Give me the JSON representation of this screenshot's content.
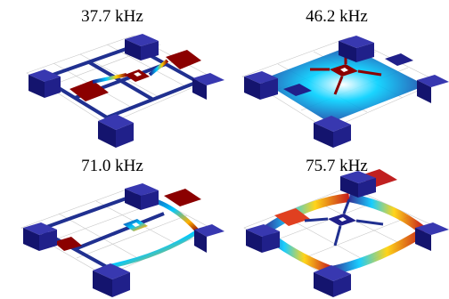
{
  "panels": [
    {
      "frequency": "37.7 kHz"
    },
    {
      "frequency": "46.2 kHz"
    },
    {
      "frequency": "71.0 kHz"
    },
    {
      "frequency": "75.7 kHz"
    }
  ],
  "colors": {
    "low": "#1a1a8c",
    "mid": "#00c8ff",
    "high": "#8b0000",
    "block": "#20208a"
  }
}
